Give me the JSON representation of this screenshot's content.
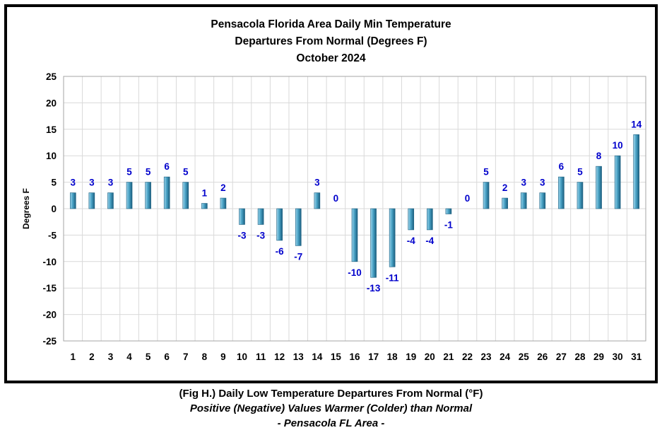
{
  "chart_data": {
    "type": "bar",
    "title_lines": [
      "Pensacola Florida Area Daily Min Temperature",
      "Departures From Normal (Degrees F)",
      "October 2024"
    ],
    "xlabel": "",
    "ylabel": "Degrees F",
    "ylim": [
      -25,
      25
    ],
    "yticks": [
      25,
      20,
      15,
      10,
      5,
      0,
      -5,
      -10,
      -15,
      -20,
      -25
    ],
    "categories": [
      "1",
      "2",
      "3",
      "4",
      "5",
      "6",
      "7",
      "8",
      "9",
      "10",
      "11",
      "12",
      "13",
      "14",
      "15",
      "16",
      "17",
      "18",
      "19",
      "20",
      "21",
      "22",
      "23",
      "24",
      "25",
      "26",
      "27",
      "28",
      "29",
      "30",
      "31"
    ],
    "values": [
      3,
      3,
      3,
      5,
      5,
      6,
      5,
      1,
      2,
      -3,
      -3,
      -6,
      -7,
      3,
      0,
      -10,
      -13,
      -11,
      -4,
      -4,
      -1,
      0,
      5,
      2,
      3,
      3,
      6,
      5,
      8,
      10,
      14
    ],
    "data_labels": true,
    "grid": true,
    "legend": "none",
    "colors": {
      "bar_light": "#9fd4ea",
      "bar_mid": "#4aa3c6",
      "bar_dark": "#1b5f80",
      "label": "#0000cc",
      "grid": "#d9d9d9",
      "plot_border": "#a6a6a6"
    }
  },
  "caption": {
    "line1": "(Fig H.) Daily Low Temperature Departures From Normal (°F)",
    "line2": "Positive (Negative) Values Warmer (Colder) than Normal",
    "line3": "- Pensacola FL Area -"
  }
}
